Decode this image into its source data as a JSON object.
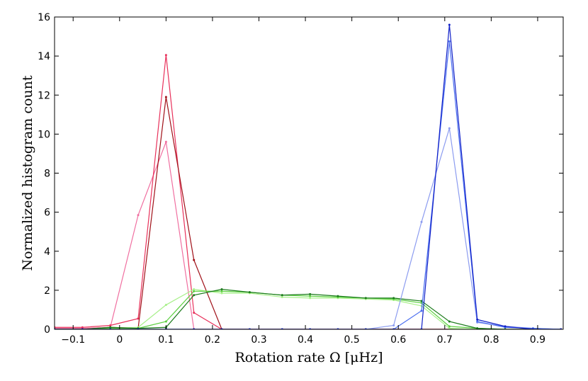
{
  "chart_data": {
    "type": "line",
    "xlabel": "Rotation rate Ω [μHz]",
    "ylabel": "Normalized histogram count",
    "xlim": [
      -0.14,
      0.955
    ],
    "ylim": [
      0,
      16
    ],
    "xticks": [
      -0.1,
      0,
      0.1,
      0.2,
      0.3,
      0.4,
      0.5,
      0.6,
      0.7,
      0.8,
      0.9
    ],
    "xtick_labels": [
      "−0.1",
      "0",
      "0.1",
      "0.2",
      "0.3",
      "0.4",
      "0.5",
      "0.6",
      "0.7",
      "0.8",
      "0.9"
    ],
    "yticks": [
      0,
      2,
      4,
      6,
      8,
      10,
      12,
      14,
      16
    ],
    "ytick_labels": [
      "0",
      "2",
      "4",
      "6",
      "8",
      "10",
      "12",
      "14",
      "16"
    ],
    "grid": false,
    "legend": "none",
    "series": [
      {
        "color": "#f06fa0",
        "x": [
          -0.14,
          -0.08,
          -0.02,
          0.04,
          0.1,
          0.16,
          0.22,
          0.95
        ],
        "y": [
          0.05,
          0.05,
          0.1,
          5.85,
          9.6,
          0.0,
          0.0,
          0.0
        ]
      },
      {
        "color": "#e8305a",
        "x": [
          -0.14,
          -0.08,
          -0.02,
          0.04,
          0.1,
          0.16,
          0.22,
          0.95
        ],
        "y": [
          0.1,
          0.1,
          0.2,
          0.55,
          14.05,
          0.85,
          0.0,
          0.0
        ]
      },
      {
        "color": "#a01018",
        "x": [
          -0.14,
          -0.08,
          -0.02,
          0.04,
          0.1,
          0.16,
          0.22,
          0.95
        ],
        "y": [
          0.0,
          0.0,
          0.1,
          0.05,
          11.9,
          3.55,
          0.0,
          0.0
        ]
      },
      {
        "color": "#a8f08a",
        "x": [
          -0.14,
          -0.08,
          -0.02,
          0.04,
          0.1,
          0.16,
          0.22,
          0.28,
          0.35,
          0.41,
          0.47,
          0.53,
          0.59,
          0.65,
          0.71,
          0.77,
          0.83,
          0.89,
          0.95
        ],
        "y": [
          0.0,
          0.0,
          0.05,
          0.1,
          1.25,
          2.05,
          1.85,
          1.85,
          1.65,
          1.6,
          1.6,
          1.55,
          1.5,
          1.2,
          0.05,
          0.0,
          0.0,
          0.0,
          0.0
        ]
      },
      {
        "color": "#5cd040",
        "x": [
          -0.14,
          -0.08,
          -0.02,
          0.04,
          0.1,
          0.16,
          0.22,
          0.28,
          0.35,
          0.41,
          0.47,
          0.53,
          0.59,
          0.65,
          0.71,
          0.77,
          0.83,
          0.89,
          0.95
        ],
        "y": [
          0.0,
          0.0,
          0.05,
          0.05,
          0.4,
          1.95,
          1.95,
          1.9,
          1.75,
          1.7,
          1.65,
          1.6,
          1.55,
          1.35,
          0.15,
          0.05,
          0.0,
          0.0,
          0.0
        ]
      },
      {
        "color": "#1a7a1a",
        "x": [
          -0.14,
          -0.08,
          -0.02,
          0.04,
          0.1,
          0.16,
          0.22,
          0.28,
          0.35,
          0.41,
          0.47,
          0.53,
          0.59,
          0.65,
          0.71,
          0.77,
          0.83,
          0.89,
          0.95
        ],
        "y": [
          0.0,
          0.0,
          0.1,
          0.05,
          0.1,
          1.75,
          2.05,
          1.9,
          1.75,
          1.8,
          1.7,
          1.6,
          1.6,
          1.45,
          0.4,
          0.05,
          0.0,
          0.0,
          0.0
        ]
      },
      {
        "color": "#8c9cf0",
        "x": [
          -0.14,
          -0.08,
          -0.02,
          0.04,
          0.1,
          0.16,
          0.22,
          0.28,
          0.35,
          0.41,
          0.47,
          0.53,
          0.59,
          0.65,
          0.71,
          0.77,
          0.83,
          0.89,
          0.95
        ],
        "y": [
          0.0,
          0.0,
          0.0,
          0.0,
          0.0,
          0.0,
          0.0,
          0.0,
          0.0,
          0.0,
          0.0,
          0.0,
          0.2,
          5.5,
          10.3,
          0.35,
          0.15,
          0.05,
          0.0
        ]
      },
      {
        "color": "#4a6ef0",
        "x": [
          -0.14,
          -0.08,
          -0.02,
          0.04,
          0.1,
          0.16,
          0.22,
          0.28,
          0.35,
          0.41,
          0.47,
          0.53,
          0.59,
          0.65,
          0.71,
          0.77,
          0.83,
          0.89,
          0.95
        ],
        "y": [
          0.0,
          0.0,
          0.0,
          0.0,
          0.0,
          0.0,
          0.0,
          0.0,
          0.0,
          0.0,
          0.0,
          0.0,
          0.0,
          0.95,
          14.75,
          0.4,
          0.1,
          0.05,
          0.0
        ]
      },
      {
        "color": "#1020c8",
        "x": [
          -0.14,
          -0.08,
          -0.02,
          0.04,
          0.1,
          0.16,
          0.22,
          0.28,
          0.35,
          0.41,
          0.47,
          0.53,
          0.59,
          0.65,
          0.71,
          0.77,
          0.83,
          0.89,
          0.95
        ],
        "y": [
          0.0,
          0.0,
          0.0,
          0.0,
          0.0,
          0.0,
          0.0,
          0.0,
          0.0,
          0.0,
          0.0,
          0.0,
          0.0,
          0.0,
          15.6,
          0.5,
          0.15,
          0.0,
          0.0
        ]
      }
    ]
  }
}
